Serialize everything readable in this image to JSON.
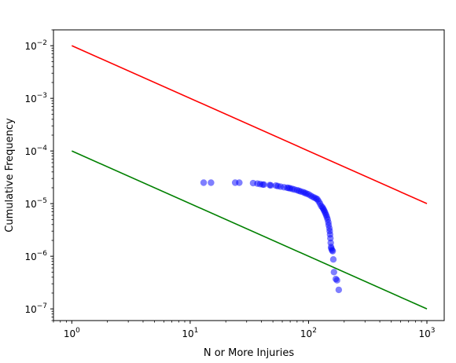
{
  "chart_data": {
    "type": "scatter",
    "title": "",
    "xlabel": "N or More Injuries",
    "ylabel": "Cumulative Frequency",
    "xscale": "log",
    "yscale": "log",
    "xlim": [
      0.7,
      1400
    ],
    "ylim": [
      6e-08,
      0.02
    ],
    "x_ticks": [
      {
        "value": 1,
        "base": "10",
        "exp": "0"
      },
      {
        "value": 10,
        "base": "10",
        "exp": "1"
      },
      {
        "value": 100,
        "base": "10",
        "exp": "2"
      },
      {
        "value": 1000,
        "base": "10",
        "exp": "3"
      }
    ],
    "y_ticks": [
      {
        "value": 1e-07,
        "base": "10",
        "exp": "−7"
      },
      {
        "value": 1e-06,
        "base": "10",
        "exp": "−6"
      },
      {
        "value": 1e-05,
        "base": "10",
        "exp": "−5"
      },
      {
        "value": 0.0001,
        "base": "10",
        "exp": "−4"
      },
      {
        "value": 0.001,
        "base": "10",
        "exp": "−3"
      },
      {
        "value": 0.01,
        "base": "10",
        "exp": "−2"
      }
    ],
    "grid": false,
    "lines": [
      {
        "color": "#ff0000",
        "x": [
          1,
          1000
        ],
        "y": [
          0.01,
          1e-05
        ]
      },
      {
        "color": "#008000",
        "x": [
          1,
          1000
        ],
        "y": [
          0.0001,
          1e-07
        ]
      }
    ],
    "series": [
      {
        "color": "#0000ff",
        "opacity": 0.5,
        "x": [
          13,
          15,
          24,
          26,
          34,
          37,
          39,
          41,
          42,
          47,
          48,
          53,
          55,
          58,
          62,
          66,
          68,
          70,
          73,
          76,
          80,
          83,
          86,
          90,
          93,
          96,
          100,
          104,
          108,
          112,
          116,
          119,
          122,
          125,
          128,
          131,
          133,
          135,
          137,
          139,
          141,
          143,
          145,
          147,
          148,
          150,
          151,
          152,
          153,
          154,
          155,
          156,
          158,
          160,
          162,
          164,
          170,
          174,
          180
        ],
        "y": [
          2.5e-05,
          2.5e-05,
          2.5e-05,
          2.5e-05,
          2.45e-05,
          2.4e-05,
          2.35e-05,
          2.3e-05,
          2.3e-05,
          2.25e-05,
          2.22e-05,
          2.2e-05,
          2.15e-05,
          2.1e-05,
          2.05e-05,
          2e-05,
          1.98e-05,
          1.95e-05,
          1.9e-05,
          1.85e-05,
          1.8e-05,
          1.75e-05,
          1.7e-05,
          1.65e-05,
          1.6e-05,
          1.55e-05,
          1.5e-05,
          1.42e-05,
          1.35e-05,
          1.3e-05,
          1.25e-05,
          1.2e-05,
          1.1e-05,
          1e-05,
          9e-06,
          8.5e-06,
          8e-06,
          7.5e-06,
          7e-06,
          6.5e-06,
          6e-06,
          5.5e-06,
          5e-06,
          4.4e-06,
          3.9e-06,
          3.4e-06,
          3e-06,
          2.6e-06,
          2.2e-06,
          1.8e-06,
          1.5e-06,
          1.4e-06,
          1.3e-06,
          1.25e-06,
          8.7e-07,
          5e-07,
          3.7e-07,
          3.5e-07,
          2.3e-07
        ]
      }
    ]
  }
}
